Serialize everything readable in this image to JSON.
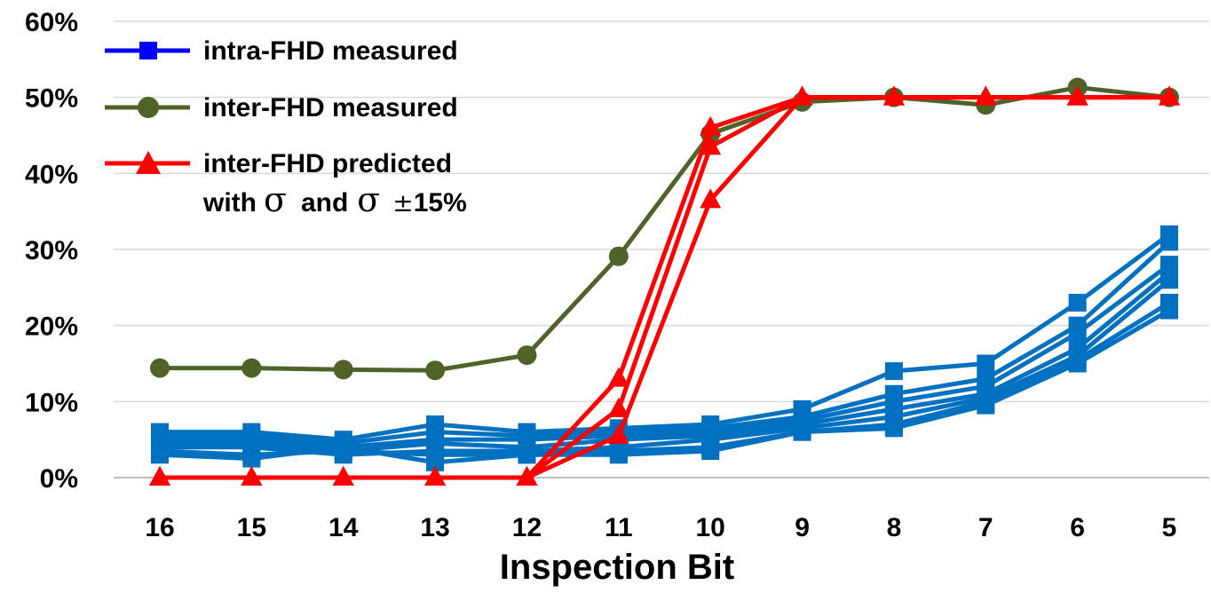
{
  "chart_data": {
    "type": "line",
    "title": "",
    "xlabel": "Inspection Bit",
    "ylabel": "",
    "categories": [
      "16",
      "15",
      "14",
      "13",
      "12",
      "11",
      "10",
      "9",
      "8",
      "7",
      "6",
      "5"
    ],
    "y_ticks": [
      "0%",
      "10%",
      "20%",
      "30%",
      "40%",
      "50%",
      "60%"
    ],
    "ylim": [
      0,
      60
    ],
    "grid": true,
    "legend_position": "top-left",
    "legend": [
      {
        "label": "intra-FHD measured",
        "color": "#0000ff",
        "marker": "square"
      },
      {
        "label": "inter-FHD measured",
        "color": "#4f6228",
        "marker": "circle"
      },
      {
        "label_line1": "inter-FHD predicted",
        "label_with": "with",
        "label_and": "and",
        "label_pct": "15%",
        "sigma": "σ",
        "plus_minus": "±",
        "color": "#ff0000",
        "marker": "triangle"
      }
    ],
    "series": [
      {
        "name": "intra-FHD measured 1",
        "group": "intra",
        "color": "#0070c0",
        "marker": "square",
        "values": [
          6.0,
          6.0,
          5.0,
          7.0,
          6.0,
          6.5,
          7.0,
          9.0,
          14.0,
          15.0,
          23.0,
          32.0
        ]
      },
      {
        "name": "intra-FHD measured 2",
        "group": "intra",
        "color": "#0070c0",
        "marker": "square",
        "values": [
          5.5,
          5.5,
          4.5,
          6.0,
          5.5,
          6.0,
          6.5,
          8.0,
          11.0,
          13.0,
          20.0,
          31.0
        ]
      },
      {
        "name": "intra-FHD measured 3",
        "group": "intra",
        "color": "#0070c0",
        "marker": "square",
        "values": [
          5.0,
          5.0,
          4.0,
          5.0,
          5.0,
          5.5,
          6.0,
          7.5,
          10.0,
          12.0,
          19.0,
          28.0
        ]
      },
      {
        "name": "intra-FHD measured 4",
        "group": "intra",
        "color": "#0070c0",
        "marker": "square",
        "values": [
          4.5,
          4.5,
          3.5,
          4.5,
          4.0,
          5.0,
          5.5,
          7.0,
          9.0,
          11.0,
          17.0,
          27.0
        ]
      },
      {
        "name": "intra-FHD measured 5",
        "group": "intra",
        "color": "#0070c0",
        "marker": "square",
        "values": [
          4.0,
          4.0,
          3.0,
          3.5,
          3.5,
          4.0,
          5.0,
          6.5,
          8.0,
          10.5,
          16.0,
          26.0
        ]
      },
      {
        "name": "intra-FHD measured 6",
        "group": "intra",
        "color": "#0070c0",
        "marker": "square",
        "values": [
          3.5,
          3.0,
          3.5,
          3.0,
          3.0,
          3.5,
          4.0,
          6.0,
          7.0,
          10.0,
          15.5,
          23.0
        ]
      },
      {
        "name": "intra-FHD measured 7",
        "group": "intra",
        "color": "#0070c0",
        "marker": "square",
        "values": [
          3.0,
          2.5,
          4.0,
          2.0,
          3.0,
          3.0,
          3.5,
          6.0,
          6.5,
          9.5,
          15.0,
          22.0
        ]
      },
      {
        "name": "inter-FHD measured",
        "group": "inter",
        "color": "#4f6228",
        "marker": "circle",
        "values": [
          14.4,
          14.4,
          14.2,
          14.1,
          16.1,
          29.1,
          45.2,
          49.4,
          50.0,
          49.0,
          51.3,
          50.0
        ]
      },
      {
        "name": "inter-FHD predicted (σ)",
        "group": "pred",
        "color": "#ff0000",
        "marker": "triangle",
        "values": [
          0,
          0,
          0,
          0,
          0,
          9.0,
          43.5,
          50.0,
          50.0,
          50.0,
          50.0,
          50.0
        ]
      },
      {
        "name": "inter-FHD predicted (σ+15%)",
        "group": "pred",
        "color": "#ff0000",
        "marker": "triangle",
        "values": [
          0,
          0,
          0,
          0,
          0,
          13.0,
          46.0,
          50.0,
          50.0,
          50.0,
          50.0,
          50.0
        ]
      },
      {
        "name": "inter-FHD predicted (σ-15%)",
        "group": "pred",
        "color": "#ff0000",
        "marker": "triangle",
        "values": [
          0,
          0,
          0,
          0,
          0,
          5.5,
          36.5,
          50.0,
          50.0,
          50.0,
          50.0,
          50.0
        ]
      }
    ]
  }
}
